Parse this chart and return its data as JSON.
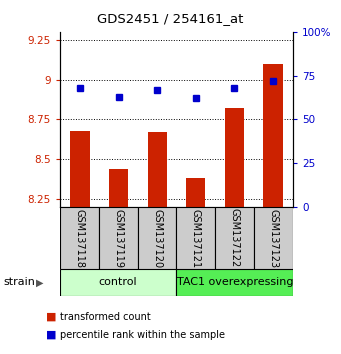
{
  "title": "GDS2451 / 254161_at",
  "samples": [
    "GSM137118",
    "GSM137119",
    "GSM137120",
    "GSM137121",
    "GSM137122",
    "GSM137123"
  ],
  "transformed_counts": [
    8.68,
    8.44,
    8.67,
    8.38,
    8.82,
    9.1
  ],
  "percentile_ranks": [
    68,
    63,
    67,
    62,
    68,
    72
  ],
  "ylim_left": [
    8.2,
    9.3
  ],
  "ylim_right": [
    0,
    100
  ],
  "yticks_left": [
    8.25,
    8.5,
    8.75,
    9.0,
    9.25
  ],
  "yticks_right": [
    0,
    25,
    50,
    75,
    100
  ],
  "ytick_labels_left": [
    "8.25",
    "8.5",
    "8.75",
    "9",
    "9.25"
  ],
  "ytick_labels_right": [
    "0",
    "25",
    "50",
    "75",
    "100%"
  ],
  "bar_color": "#cc2200",
  "dot_color": "#0000cc",
  "bar_bottom": 8.2,
  "group1_indices": [
    0,
    1,
    2
  ],
  "group2_indices": [
    3,
    4,
    5
  ],
  "group1_label": "control",
  "group2_label": "TAC1 overexpressing",
  "group1_color": "#ccffcc",
  "group2_color": "#55ee55",
  "group_header": "strain",
  "legend_bar_label": "transformed count",
  "legend_dot_label": "percentile rank within the sample",
  "tick_label_bg": "#cccccc",
  "tick_label_edge": "#888888"
}
